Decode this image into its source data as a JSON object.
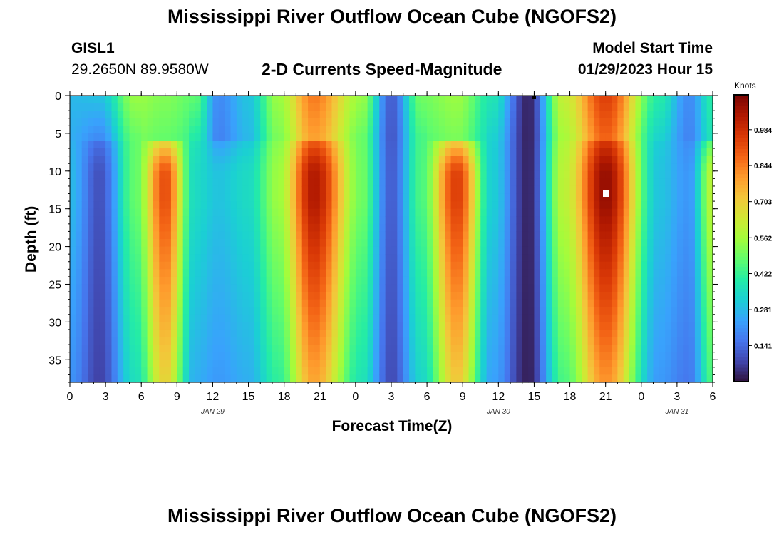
{
  "page": {
    "title_top": "Mississippi River Outflow Ocean Cube (NGOFS2)",
    "title_bottom": "Mississippi River Outflow Ocean Cube (NGOFS2)",
    "station_id": "GISL1",
    "station_coords": "29.2650N  89.9580W",
    "subtitle": "2-D Currents Speed-Magnitude",
    "model_start_label": "Model Start Time",
    "model_start_value": "01/29/2023 Hour 15",
    "xlabel": "Forecast Time(Z)",
    "ylabel": "Depth (ft)",
    "colorbar_unit": "Knots"
  },
  "chart_data": {
    "type": "heatmap",
    "title": "2-D Currents Speed-Magnitude",
    "xlabel": "Forecast Time(Z)",
    "ylabel": "Depth (ft)",
    "units": "Knots",
    "x_tick_labels": [
      "0",
      "3",
      "6",
      "9",
      "12",
      "15",
      "18",
      "21",
      "0",
      "3",
      "6",
      "9",
      "12",
      "15",
      "18",
      "21",
      "0",
      "3",
      "6"
    ],
    "x_range_hours": [
      0,
      54
    ],
    "date_labels": [
      {
        "label": "JAN 29",
        "hour": 12
      },
      {
        "label": "JAN 30",
        "hour": 36
      },
      {
        "label": "JAN 31",
        "hour": 51
      }
    ],
    "y_ticks": [
      0,
      5,
      10,
      15,
      20,
      25,
      30,
      35
    ],
    "y_range": [
      0,
      38
    ],
    "y_inverted": true,
    "colorbar_ticks": [
      0.141,
      0.281,
      0.422,
      0.562,
      0.703,
      0.844,
      0.984
    ],
    "colorbar_range": [
      0.0,
      1.12
    ],
    "colorscale": [
      "#30123b",
      "#4145ab",
      "#4675ed",
      "#39a2fc",
      "#1bcfd4",
      "#24eca6",
      "#61fc6c",
      "#a4fc3b",
      "#d1e834",
      "#f3c63a",
      "#fe9b2d",
      "#f36315",
      "#d93806",
      "#b11901",
      "#7a0403"
    ],
    "speed_profile_knots": [
      {
        "hour": 0,
        "surface": 0.28,
        "deep": 0.28
      },
      {
        "hour": 2.5,
        "surface": 0.3,
        "deep": 0.1
      },
      {
        "hour": 5.5,
        "surface": 0.55,
        "deep": 0.48
      },
      {
        "hour": 8,
        "surface": 0.52,
        "deep": 0.92
      },
      {
        "hour": 10.5,
        "surface": 0.48,
        "deep": 0.35
      },
      {
        "hour": 12.5,
        "surface": 0.2,
        "deep": 0.3
      },
      {
        "hour": 15,
        "surface": 0.3,
        "deep": 0.35
      },
      {
        "hour": 17.5,
        "surface": 0.55,
        "deep": 0.55
      },
      {
        "hour": 20.5,
        "surface": 0.85,
        "deep": 1.04
      },
      {
        "hour": 24.5,
        "surface": 0.55,
        "deep": 0.5
      },
      {
        "hour": 27,
        "surface": 0.12,
        "deep": 0.12
      },
      {
        "hour": 29.5,
        "surface": 0.5,
        "deep": 0.45
      },
      {
        "hour": 32.5,
        "surface": 0.55,
        "deep": 0.95
      },
      {
        "hour": 35.5,
        "surface": 0.38,
        "deep": 0.32
      },
      {
        "hour": 38.5,
        "surface": 0.03,
        "deep": 0.03
      },
      {
        "hour": 41.5,
        "surface": 0.62,
        "deep": 0.6
      },
      {
        "hour": 45,
        "surface": 0.95,
        "deep": 1.08
      },
      {
        "hour": 49.5,
        "surface": 0.4,
        "deep": 0.3
      },
      {
        "hour": 52,
        "surface": 0.2,
        "deep": 0.22
      },
      {
        "hour": 54,
        "surface": 0.4,
        "deep": 0.6
      }
    ]
  }
}
